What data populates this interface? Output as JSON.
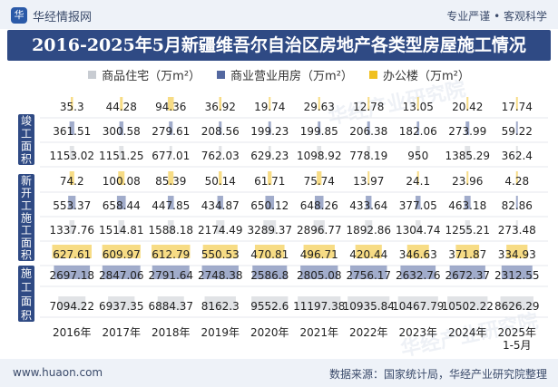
{
  "header": {
    "brand": "华经情报网",
    "brand_logo_text": "华",
    "slogan": "专业严谨 • 客观科学"
  },
  "footer": {
    "url": "www.huaon.com",
    "source": "数据来源：国家统计局，华经产业研究院整理"
  },
  "watermark": "华经产业研究院",
  "colors": {
    "residential": "#c8ccd2",
    "commercial": "#5468a0",
    "office": "#f0c020",
    "group_bg": "#2f4a84",
    "title_bg": "#2f4a84"
  },
  "chart_data": {
    "type": "table",
    "title": "2016-2025年5月新疆维吾尔自治区房地产各类型房屋施工情况",
    "legend": [
      "商品住宅（万m²）",
      "商业营业用房（万m²）",
      "办公楼（万m²）"
    ],
    "categories": [
      "2016年",
      "2017年",
      "2018年",
      "2019年",
      "2020年",
      "2021年",
      "2022年",
      "2023年",
      "2024年",
      "2025年\n1-5月"
    ],
    "groups": [
      {
        "name": "竣工面积",
        "series": [
          {
            "name": "办公楼",
            "values": [
              35.3,
              44.28,
              94.36,
              36.92,
              19.74,
              29.63,
              12.78,
              13.05,
              20.42,
              17.74
            ]
          },
          {
            "name": "商业营业用房",
            "values": [
              361.51,
              300.58,
              279.61,
              208.56,
              199.23,
              199.85,
              206.38,
              182.06,
              273.99,
              59.22
            ]
          },
          {
            "name": "商品住宅",
            "values": [
              1153.02,
              1151.25,
              677.01,
              762.03,
              629.23,
              1098.92,
              778.19,
              950,
              1385.29,
              362.4
            ]
          }
        ]
      },
      {
        "name": "新开工施工面积",
        "series": [
          {
            "name": "办公楼",
            "values": [
              74.2,
              100.08,
              85.39,
              50.14,
              61.71,
              75.74,
              13.97,
              24.1,
              23.96,
              4.28
            ]
          },
          {
            "name": "商业营业用房",
            "values": [
              553.37,
              658.44,
              447.85,
              434.87,
              650.12,
              648.26,
              433.64,
              377.05,
              463.18,
              82.86
            ]
          },
          {
            "name": "商品住宅",
            "values": [
              1337.76,
              1514.81,
              1588.18,
              2174.49,
              3289.37,
              2896.77,
              1892.86,
              1304.74,
              1255.21,
              273.48
            ]
          }
        ]
      },
      {
        "name": "施工面积",
        "series": [
          {
            "name": "办公楼",
            "values": [
              627.61,
              609.97,
              612.79,
              550.53,
              470.81,
              496.71,
              420.44,
              346.63,
              371.87,
              334.93
            ]
          },
          {
            "name": "商业营业用房",
            "values": [
              2697.18,
              2847.06,
              2791.64,
              2748.38,
              2586.8,
              2805.08,
              2756.17,
              2632.76,
              2672.37,
              2312.55
            ]
          },
          {
            "name": "商品住宅",
            "values": [
              7094.22,
              6937.35,
              6884.37,
              8162.3,
              9552.6,
              11197.38,
              10935.84,
              10467.79,
              10502.22,
              8626.29
            ]
          }
        ]
      }
    ]
  }
}
